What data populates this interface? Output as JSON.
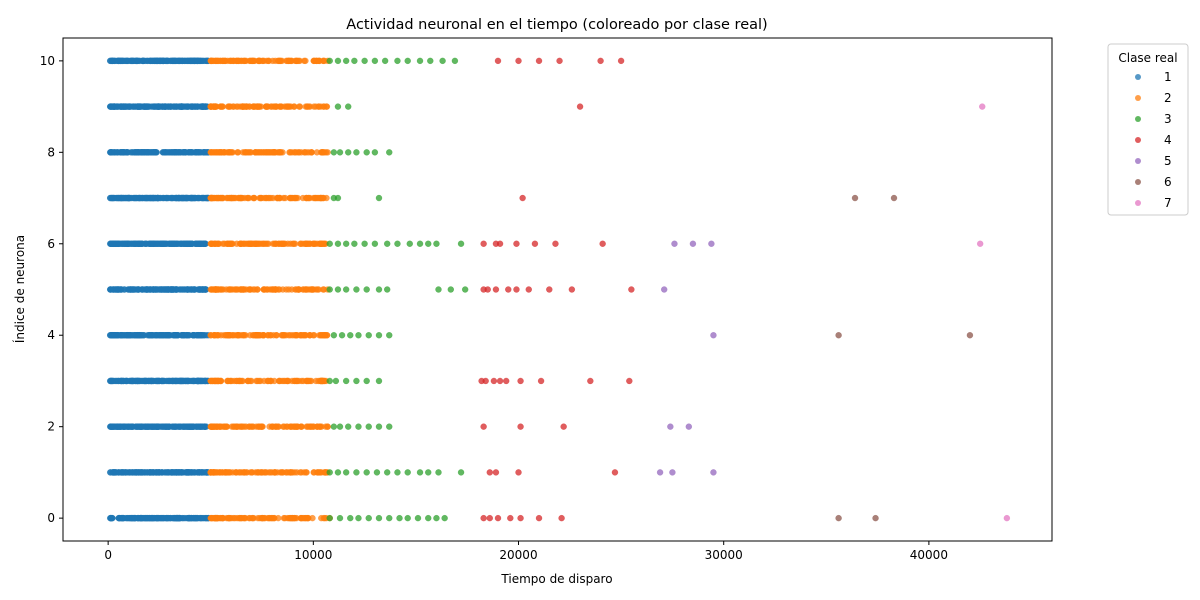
{
  "chart_data": {
    "type": "scatter",
    "title": "Actividad neuronal en el tiempo (coloreado por clase real)",
    "xlabel": "Tiempo de disparo",
    "ylabel": "Índice de neurona",
    "xlim": [
      -2200,
      46000
    ],
    "ylim": [
      -0.5,
      10.5
    ],
    "xticks": [
      0,
      10000,
      20000,
      30000,
      40000
    ],
    "yticks": [
      0,
      2,
      4,
      6,
      8,
      10
    ],
    "grid": false,
    "legend": {
      "title": "Clase real",
      "position": "outside-right-top"
    },
    "series": [
      {
        "name": "1",
        "color": "#1f77b4",
        "dense_range": [
          100,
          4900
        ],
        "points": [
          [
            100,
            10
          ],
          [
            100,
            9
          ],
          [
            100,
            8
          ],
          [
            100,
            7
          ],
          [
            100,
            6
          ],
          [
            100,
            5
          ],
          [
            100,
            4
          ],
          [
            100,
            3
          ],
          [
            100,
            2
          ],
          [
            100,
            1
          ],
          [
            100,
            0
          ]
        ]
      },
      {
        "name": "2",
        "color": "#ff7f0e",
        "dense_range": [
          5000,
          10700
        ],
        "points": [
          [
            5000,
            10
          ],
          [
            10700,
            10
          ],
          [
            5000,
            9
          ],
          [
            8200,
            9
          ],
          [
            8800,
            9
          ],
          [
            5000,
            8
          ],
          [
            8000,
            8
          ],
          [
            8500,
            8
          ],
          [
            9900,
            8
          ],
          [
            5000,
            7
          ],
          [
            5200,
            7
          ],
          [
            5500,
            7
          ],
          [
            5800,
            7
          ],
          [
            6100,
            7
          ],
          [
            6500,
            7
          ],
          [
            6800,
            7
          ],
          [
            7600,
            7
          ],
          [
            5000,
            6
          ],
          [
            10600,
            6
          ],
          [
            5000,
            5
          ],
          [
            10700,
            5
          ],
          [
            5000,
            4
          ],
          [
            6300,
            4
          ],
          [
            6700,
            4
          ],
          [
            7100,
            4
          ],
          [
            7800,
            4
          ],
          [
            8200,
            4
          ],
          [
            8800,
            4
          ],
          [
            5000,
            3
          ],
          [
            10400,
            3
          ],
          [
            5000,
            2
          ],
          [
            10700,
            2
          ],
          [
            5000,
            1
          ],
          [
            10600,
            1
          ],
          [
            5000,
            0
          ],
          [
            10800,
            0
          ]
        ]
      },
      {
        "name": "3",
        "color": "#2ca02c",
        "points": [
          [
            10800,
            10
          ],
          [
            11200,
            10
          ],
          [
            11600,
            10
          ],
          [
            12000,
            10
          ],
          [
            12500,
            10
          ],
          [
            13000,
            10
          ],
          [
            13500,
            10
          ],
          [
            14100,
            10
          ],
          [
            14600,
            10
          ],
          [
            15200,
            10
          ],
          [
            15700,
            10
          ],
          [
            16300,
            10
          ],
          [
            16900,
            10
          ],
          [
            11200,
            9
          ],
          [
            11700,
            9
          ],
          [
            11000,
            8
          ],
          [
            11300,
            8
          ],
          [
            11700,
            8
          ],
          [
            12100,
            8
          ],
          [
            12600,
            8
          ],
          [
            13000,
            8
          ],
          [
            13700,
            8
          ],
          [
            11000,
            7
          ],
          [
            11200,
            7
          ],
          [
            13200,
            7
          ],
          [
            10800,
            6
          ],
          [
            11200,
            6
          ],
          [
            11600,
            6
          ],
          [
            12000,
            6
          ],
          [
            12500,
            6
          ],
          [
            13000,
            6
          ],
          [
            13600,
            6
          ],
          [
            14100,
            6
          ],
          [
            14700,
            6
          ],
          [
            15200,
            6
          ],
          [
            15600,
            6
          ],
          [
            16000,
            6
          ],
          [
            17200,
            6
          ],
          [
            10800,
            5
          ],
          [
            11200,
            5
          ],
          [
            11600,
            5
          ],
          [
            12100,
            5
          ],
          [
            12600,
            5
          ],
          [
            13200,
            5
          ],
          [
            13600,
            5
          ],
          [
            16100,
            5
          ],
          [
            16700,
            5
          ],
          [
            17400,
            5
          ],
          [
            11000,
            4
          ],
          [
            11400,
            4
          ],
          [
            11800,
            4
          ],
          [
            12200,
            4
          ],
          [
            12700,
            4
          ],
          [
            13200,
            4
          ],
          [
            13700,
            4
          ],
          [
            10800,
            3
          ],
          [
            11100,
            3
          ],
          [
            11600,
            3
          ],
          [
            12100,
            3
          ],
          [
            12600,
            3
          ],
          [
            13200,
            3
          ],
          [
            11000,
            2
          ],
          [
            11300,
            2
          ],
          [
            11700,
            2
          ],
          [
            12200,
            2
          ],
          [
            12700,
            2
          ],
          [
            13200,
            2
          ],
          [
            13700,
            2
          ],
          [
            10800,
            1
          ],
          [
            11200,
            1
          ],
          [
            11600,
            1
          ],
          [
            12100,
            1
          ],
          [
            12600,
            1
          ],
          [
            13100,
            1
          ],
          [
            13600,
            1
          ],
          [
            14100,
            1
          ],
          [
            14600,
            1
          ],
          [
            15200,
            1
          ],
          [
            15600,
            1
          ],
          [
            16100,
            1
          ],
          [
            17200,
            1
          ],
          [
            10800,
            0
          ],
          [
            11300,
            0
          ],
          [
            11800,
            0
          ],
          [
            12200,
            0
          ],
          [
            12700,
            0
          ],
          [
            13200,
            0
          ],
          [
            13700,
            0
          ],
          [
            14200,
            0
          ],
          [
            14600,
            0
          ],
          [
            15100,
            0
          ],
          [
            15600,
            0
          ],
          [
            16000,
            0
          ],
          [
            16400,
            0
          ]
        ]
      },
      {
        "name": "4",
        "color": "#d62728",
        "points": [
          [
            19000,
            10
          ],
          [
            20000,
            10
          ],
          [
            21000,
            10
          ],
          [
            22000,
            10
          ],
          [
            24000,
            10
          ],
          [
            25000,
            10
          ],
          [
            23000,
            9
          ],
          [
            20200,
            7
          ],
          [
            18300,
            6
          ],
          [
            18900,
            6
          ],
          [
            19100,
            6
          ],
          [
            19900,
            6
          ],
          [
            20800,
            6
          ],
          [
            21800,
            6
          ],
          [
            24100,
            6
          ],
          [
            18300,
            5
          ],
          [
            18500,
            5
          ],
          [
            18900,
            5
          ],
          [
            19500,
            5
          ],
          [
            19900,
            5
          ],
          [
            20500,
            5
          ],
          [
            21500,
            5
          ],
          [
            22600,
            5
          ],
          [
            25500,
            5
          ],
          [
            18200,
            3
          ],
          [
            18400,
            3
          ],
          [
            18800,
            3
          ],
          [
            19100,
            3
          ],
          [
            19400,
            3
          ],
          [
            20100,
            3
          ],
          [
            21100,
            3
          ],
          [
            23500,
            3
          ],
          [
            25400,
            3
          ],
          [
            18300,
            2
          ],
          [
            20100,
            2
          ],
          [
            22200,
            2
          ],
          [
            18600,
            1
          ],
          [
            18900,
            1
          ],
          [
            20000,
            1
          ],
          [
            24700,
            1
          ],
          [
            18300,
            0
          ],
          [
            18600,
            0
          ],
          [
            19000,
            0
          ],
          [
            19600,
            0
          ],
          [
            20100,
            0
          ],
          [
            21000,
            0
          ],
          [
            22100,
            0
          ]
        ]
      },
      {
        "name": "5",
        "color": "#9467bd",
        "points": [
          [
            27600,
            6
          ],
          [
            28500,
            6
          ],
          [
            29400,
            6
          ],
          [
            27100,
            5
          ],
          [
            29500,
            4
          ],
          [
            27400,
            2
          ],
          [
            28300,
            2
          ],
          [
            26900,
            1
          ],
          [
            27500,
            1
          ],
          [
            29500,
            1
          ]
        ]
      },
      {
        "name": "6",
        "color": "#8c564b",
        "points": [
          [
            36400,
            7
          ],
          [
            38300,
            7
          ],
          [
            35600,
            4
          ],
          [
            42000,
            4
          ],
          [
            35600,
            0
          ],
          [
            37400,
            0
          ]
        ]
      },
      {
        "name": "7",
        "color": "#e377c2",
        "points": [
          [
            42600,
            9
          ],
          [
            42500,
            6
          ],
          [
            43800,
            0
          ]
        ]
      }
    ]
  }
}
